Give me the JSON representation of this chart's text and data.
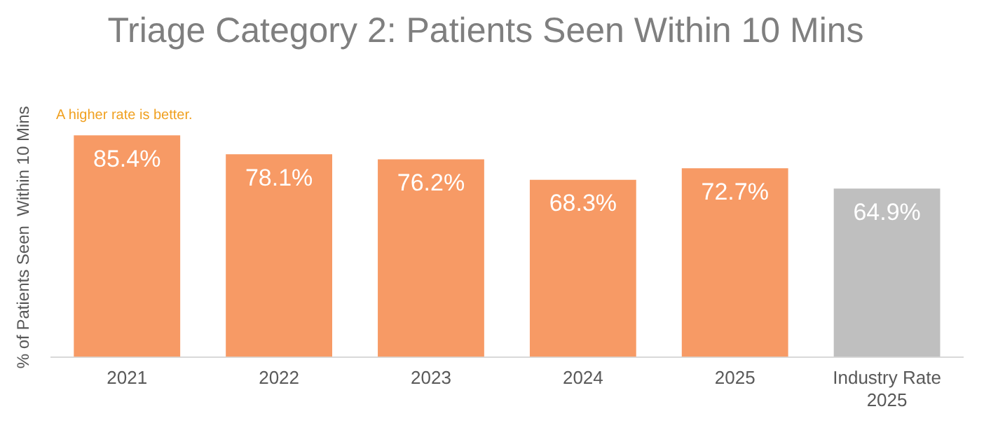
{
  "chart_data": {
    "type": "bar",
    "title": "Triage Category 2: Patients Seen Within 10 Mins",
    "ylabel": "% of Patients Seen  Within 10 Mins",
    "annotations": [
      "A higher rate is better."
    ],
    "categories": [
      "2021",
      "2022",
      "2023",
      "2024",
      "2025",
      "Industry Rate 2025"
    ],
    "values": [
      85.4,
      78.1,
      76.2,
      68.3,
      72.7,
      64.9
    ],
    "colors": [
      "#f79a65",
      "#f79a65",
      "#f79a65",
      "#f79a65",
      "#f79a65",
      "#bfbfbf"
    ],
    "value_labels": [
      "85.4%",
      "78.1%",
      "76.2%",
      "68.3%",
      "72.7%",
      "64.9%"
    ],
    "grid": false,
    "legend": false
  }
}
